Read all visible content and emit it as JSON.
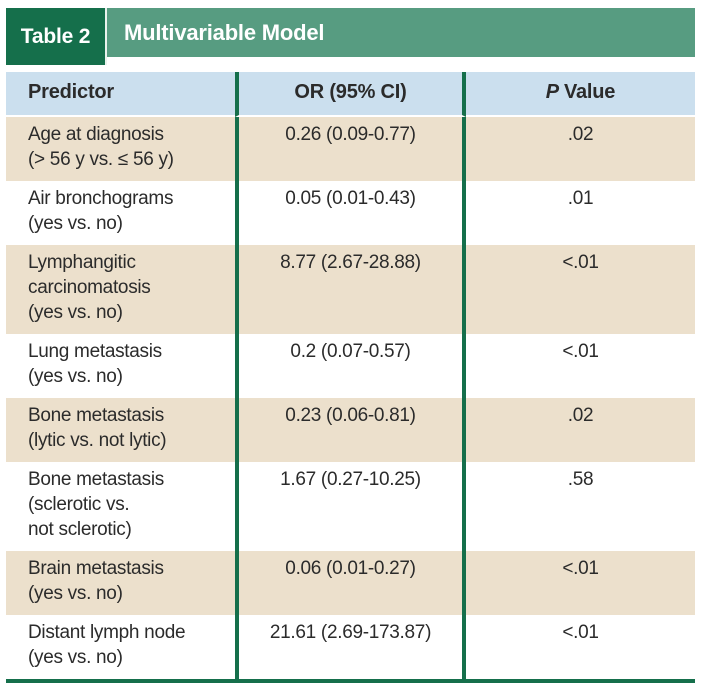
{
  "theme": {
    "tab-green": "#156f4b",
    "bar-green": "#579c81",
    "head-blue": "#cbdfee",
    "row-tan": "#ece0cc",
    "row-white": "#ffffff",
    "line-green": "#156f4b",
    "text-dark": "#2b2b2b",
    "title-white": "#ffffff"
  },
  "title_bar": {
    "tab_label": "Table 2",
    "title": "Multivariable Model"
  },
  "header": {
    "predictor": "Predictor",
    "or_ci": "OR (95% CI)",
    "p_italic": "P",
    "p_rest": "Value"
  },
  "rows": [
    {
      "predictor": "Age at diagnosis\n(> 56 y vs. ≤ 56 y)",
      "or_ci": "0.26 (0.09-0.77)",
      "p": ".02"
    },
    {
      "predictor": "Air bronchograms\n(yes vs. no)",
      "or_ci": "0.05 (0.01-0.43)",
      "p": ".01"
    },
    {
      "predictor": "Lymphangitic\ncarcinomatosis\n(yes vs. no)",
      "or_ci": "8.77 (2.67-28.88)",
      "p": "<.01"
    },
    {
      "predictor": "Lung metastasis\n(yes vs. no)",
      "or_ci": "0.2 (0.07-0.57)",
      "p": "<.01"
    },
    {
      "predictor": "Bone metastasis\n(lytic vs. not lytic)",
      "or_ci": "0.23 (0.06-0.81)",
      "p": ".02"
    },
    {
      "predictor": "Bone metastasis\n(sclerotic vs.\nnot sclerotic)",
      "or_ci": "1.67 (0.27-10.25)",
      "p": ".58"
    },
    {
      "predictor": "Brain metastasis\n(yes vs. no)",
      "or_ci": "0.06 (0.01-0.27)",
      "p": "<.01"
    },
    {
      "predictor": "Distant lymph node\n(yes vs. no)",
      "or_ci": "21.61 (2.69-173.87)",
      "p": "<.01"
    }
  ]
}
